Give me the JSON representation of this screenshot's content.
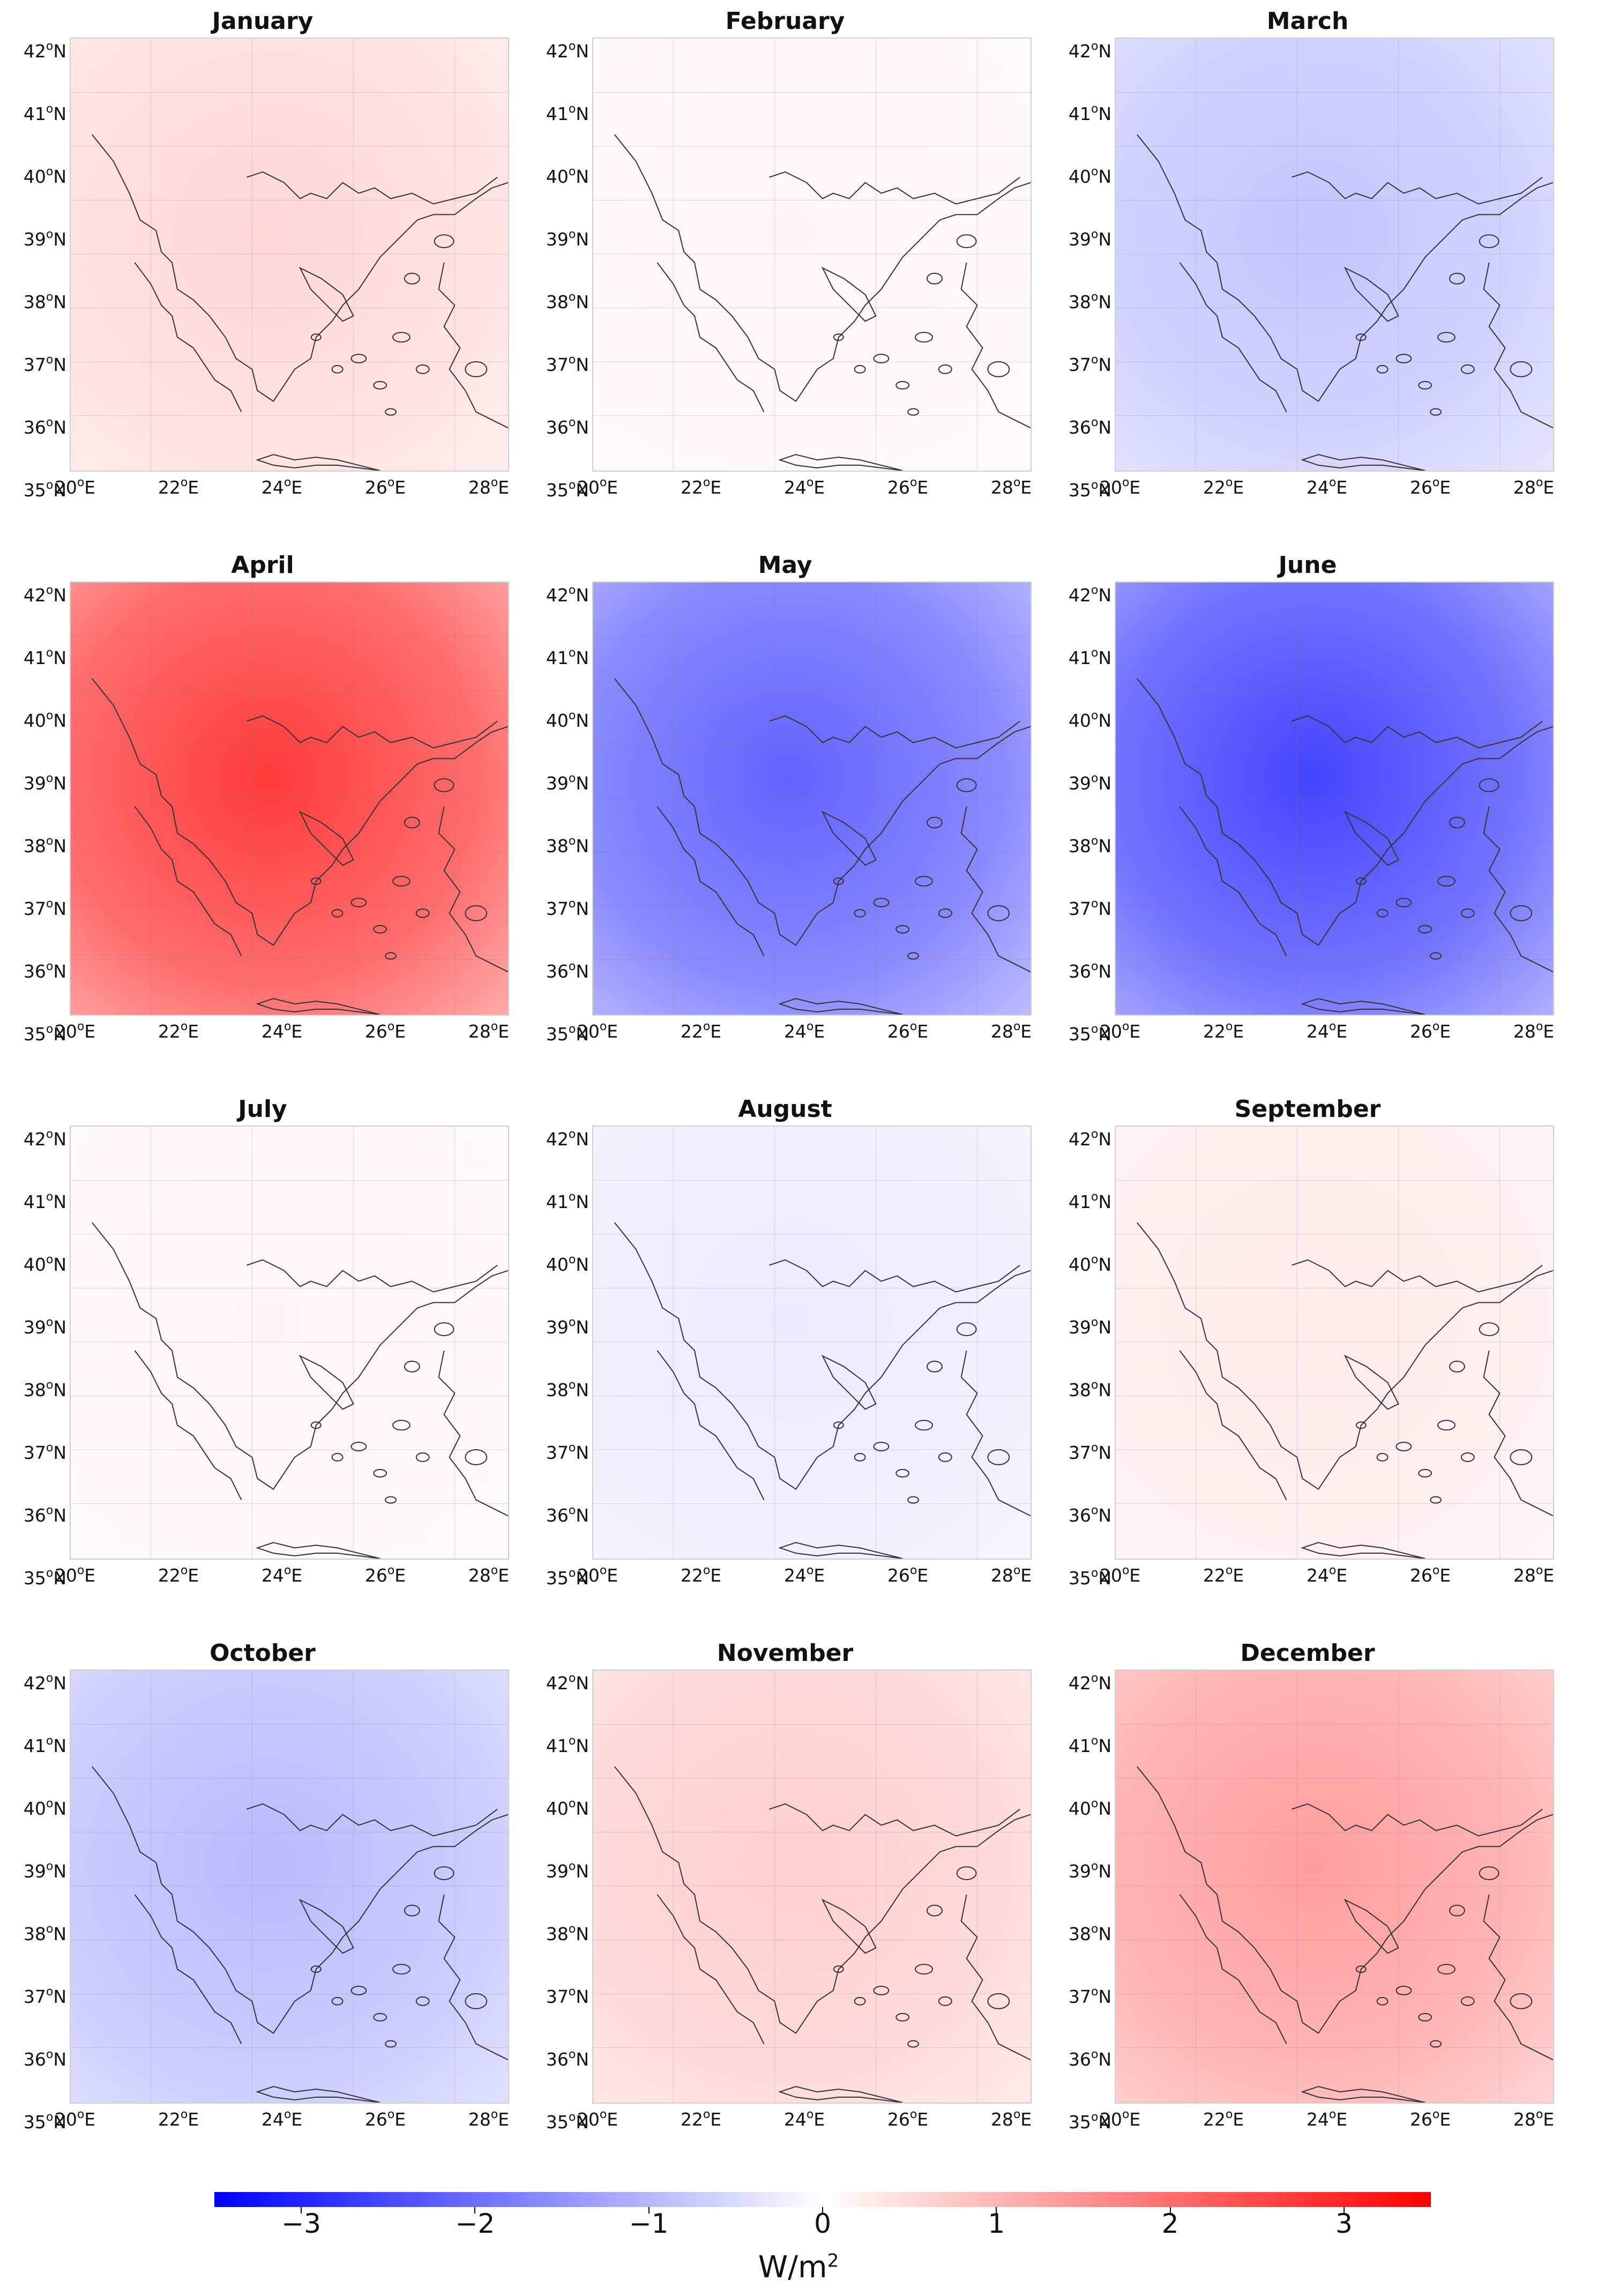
{
  "figure": {
    "colorbar": {
      "min": -3.5,
      "max": 3.5,
      "ticks": [
        "−3",
        "−2",
        "−1",
        "0",
        "1",
        "2",
        "3"
      ],
      "tick_values": [
        -3,
        -2,
        -1,
        0,
        1,
        2,
        3
      ],
      "unit_base": "W/m",
      "unit_exp": "2",
      "neg_color": "#0000ff",
      "mid_color": "#ffffff",
      "pos_color": "#ff0000"
    },
    "lat_labels": [
      "42",
      "41",
      "40",
      "39",
      "38",
      "37",
      "36",
      "35"
    ],
    "lat_suffix": "N",
    "lon_labels": [
      "20",
      "22",
      "24",
      "26",
      "28"
    ],
    "lon_suffix": "E",
    "deg_symbol": "o",
    "panels": [
      {
        "title": "January",
        "mean_anomaly": 0.4
      },
      {
        "title": "February",
        "mean_anomaly": 0.1
      },
      {
        "title": "March",
        "mean_anomaly": -0.6
      },
      {
        "title": "April",
        "mean_anomaly": 2.0
      },
      {
        "title": "May",
        "mean_anomaly": -1.6
      },
      {
        "title": "June",
        "mean_anomaly": -1.9
      },
      {
        "title": "July",
        "mean_anomaly": 0.1
      },
      {
        "title": "August",
        "mean_anomaly": -0.2
      },
      {
        "title": "September",
        "mean_anomaly": 0.2
      },
      {
        "title": "October",
        "mean_anomaly": -0.7
      },
      {
        "title": "November",
        "mean_anomaly": 0.5
      },
      {
        "title": "December",
        "mean_anomaly": 1.0
      }
    ]
  }
}
